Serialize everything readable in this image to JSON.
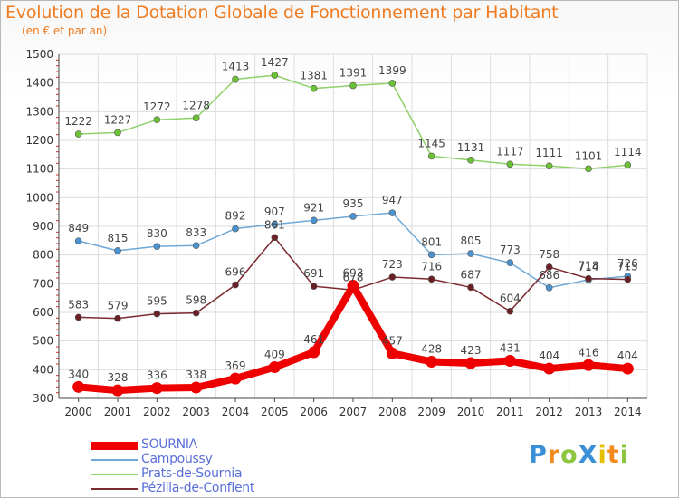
{
  "title": "Evolution de la Dotation Globale de Fonctionnement par Habitant",
  "subtitle": "(en € et par an)",
  "logo": {
    "text": "ProXiti",
    "letters": [
      {
        "ch": "P",
        "color": "#3b8fd6"
      },
      {
        "ch": "r",
        "color": "#f28a1e"
      },
      {
        "ch": "o",
        "color": "#8cc63f"
      },
      {
        "ch": "X",
        "color": "#3b8fd6"
      },
      {
        "ch": "i",
        "color": "#e6c000"
      },
      {
        "ch": "t",
        "color": "#f28a1e"
      },
      {
        "ch": "i",
        "color": "#8cc63f"
      }
    ]
  },
  "chart_data": {
    "type": "line",
    "title": "Evolution de la Dotation Globale de Fonctionnement par Habitant",
    "subtitle": "(en € et par an)",
    "xlabel": "",
    "ylabel": "",
    "x": [
      2000,
      2001,
      2002,
      2003,
      2004,
      2005,
      2006,
      2007,
      2008,
      2009,
      2010,
      2011,
      2012,
      2013,
      2014
    ],
    "ylim": [
      300,
      1500
    ],
    "yticks": [
      300,
      400,
      500,
      600,
      700,
      800,
      900,
      1000,
      1100,
      1200,
      1300,
      1400,
      1500
    ],
    "grid": true,
    "legend_position": "bottom-left",
    "series": [
      {
        "name": "Prats-de-Sournia",
        "color": "#8fd16a",
        "marker": "#6cc235",
        "values": [
          1222,
          1227,
          1272,
          1278,
          1413,
          1427,
          1381,
          1391,
          1399,
          1145,
          1131,
          1117,
          1111,
          1101,
          1114
        ]
      },
      {
        "name": "Campoussy",
        "color": "#6fa8d6",
        "marker": "#4b92d0",
        "values": [
          849,
          815,
          830,
          833,
          892,
          907,
          921,
          935,
          947,
          801,
          805,
          773,
          686,
          714,
          726
        ]
      },
      {
        "name": "Pézilla-de-Conflent",
        "color": "#7b2a30",
        "marker": "#6a1f25",
        "values": [
          583,
          579,
          595,
          598,
          696,
          861,
          691,
          678,
          723,
          716,
          687,
          604,
          758,
          718,
          715
        ]
      },
      {
        "name": "SOURNIA",
        "color": "#ee0000",
        "marker": "#ee0000",
        "values": [
          340,
          328,
          336,
          338,
          369,
          409,
          461,
          693,
          457,
          428,
          423,
          431,
          404,
          416,
          404
        ]
      }
    ]
  },
  "legend": {
    "items": [
      {
        "name": "SOURNIA",
        "color": "#ee0000",
        "thickness": 9
      },
      {
        "name": "Campoussy",
        "color": "#6fa8d6",
        "thickness": 2
      },
      {
        "name": "Prats-de-Sournia",
        "color": "#8fd16a",
        "thickness": 2
      },
      {
        "name": "Pézilla-de-Conflent",
        "color": "#7b2a30",
        "thickness": 2
      }
    ]
  }
}
